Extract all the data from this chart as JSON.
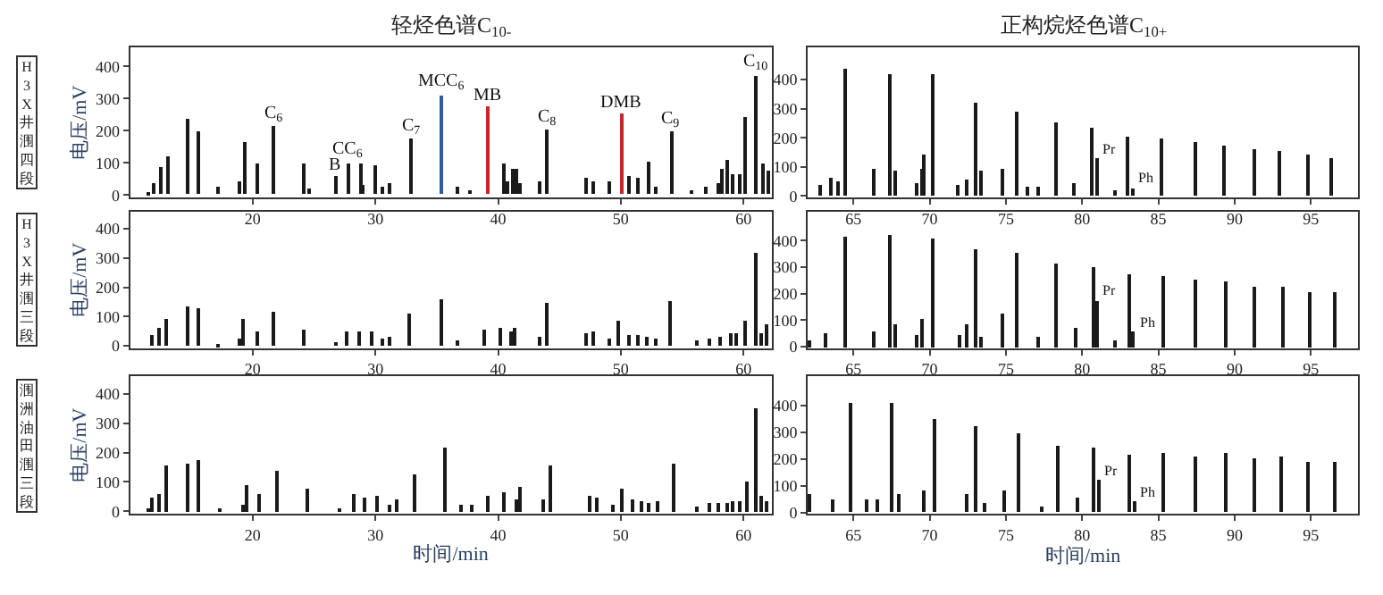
{
  "chart_data": [
    {
      "type": "bar",
      "title": "轻烃色谱C$_{10-}$",
      "ylabel": "电压/mV",
      "xlim": [
        10,
        62.3
      ],
      "xticks": [
        20,
        30,
        40,
        50,
        60
      ],
      "ylim": [
        -8,
        459
      ],
      "yticks": [
        0,
        100,
        200,
        300,
        400
      ],
      "annotations": [
        "H3X井涠四段",
        {
          "text": "C$_{6}$",
          "x": 21.7,
          "y": 212
        },
        {
          "text": "B",
          "x": 26.7,
          "y": 59
        },
        {
          "text": "CC$_{6}$",
          "x": 27.8,
          "y": 99
        },
        {
          "text": "C$_{7}$",
          "x": 32.9,
          "y": 174
        },
        {
          "text": "MCC$_{6}$",
          "x": 35.4,
          "y": 311
        },
        {
          "text": "MB",
          "x": 39.1,
          "y": 273
        },
        {
          "text": "C$_{8}$",
          "x": 44.0,
          "y": 202
        },
        {
          "text": "DMB",
          "x": 50.0,
          "y": 251
        },
        {
          "text": "C$_{9}$",
          "x": 54.1,
          "y": 198
        },
        {
          "text": "C$_{10}$",
          "x": 61.0,
          "y": 372
        }
      ],
      "series": [
        {
          "color": "#1a1a1a",
          "x": [
            11.4,
            11.9,
            12.5,
            13.0,
            14.7,
            15.6,
            17.2,
            18.9,
            19.3,
            20.3,
            21.7,
            24.2,
            24.6,
            26.7,
            27.8,
            28.8,
            29.0,
            29.9,
            30.6,
            31.2,
            32.9,
            36.7,
            37.7,
            40.4,
            40.7,
            41.2,
            41.5,
            41.8,
            43.4,
            44.0,
            47.2,
            47.8,
            49.0,
            50.7,
            51.4,
            52.2,
            52.8,
            54.1,
            55.7,
            56.9,
            57.9,
            58.2,
            58.7,
            59.1,
            59.6,
            60.1,
            61.0,
            61.5,
            62.0
          ],
          "values": [
            10,
            36,
            85,
            119,
            234,
            196,
            24,
            40,
            166,
            99,
            212,
            95,
            20,
            59,
            99,
            95,
            30,
            89,
            24,
            36,
            174,
            26,
            14,
            95,
            40,
            83,
            79,
            34,
            40,
            202,
            50,
            44,
            40,
            59,
            55,
            103,
            24,
            198,
            14,
            24,
            36,
            83,
            109,
            63,
            63,
            242,
            372,
            95,
            75
          ]
        },
        {
          "color": "#2e5aa8",
          "x": [
            35.4
          ],
          "values": [
            311
          ]
        },
        {
          "color": "#c62828",
          "x": [
            39.1,
            50.0
          ],
          "values": [
            273,
            251
          ]
        }
      ]
    },
    {
      "type": "bar",
      "title": "正构烷烃色谱C$_{10+}$",
      "xlim": [
        62,
        98.1
      ],
      "xticks": [
        65,
        70,
        75,
        80,
        85,
        90,
        95
      ],
      "ylim": [
        -5,
        510
      ],
      "yticks": [
        0,
        100,
        200,
        300,
        400
      ],
      "annotations": [
        {
          "text": "Pr",
          "x": 81.0,
          "y": 127
        },
        {
          "text": "Ph",
          "x": 83.3,
          "y": 26
        }
      ],
      "series": [
        {
          "color": "#1a1a1a",
          "x": [
            62.9,
            63.5,
            64.0,
            64.5,
            66.4,
            67.4,
            67.8,
            69.2,
            69.5,
            69.7,
            70.2,
            71.9,
            72.4,
            73.0,
            73.4,
            74.8,
            75.7,
            76.4,
            77.2,
            78.3,
            79.5,
            80.7,
            81.0,
            82.2,
            83.0,
            83.3,
            85.2,
            87.4,
            89.3,
            91.3,
            93.0,
            94.8,
            96.4
          ],
          "values": [
            40,
            62,
            48,
            435,
            92,
            418,
            84,
            44,
            92,
            141,
            418,
            40,
            55,
            319,
            84,
            95,
            286,
            31,
            29,
            253,
            44,
            233,
            127,
            18,
            204,
            26,
            198,
            185,
            174,
            160,
            154,
            141,
            127
          ]
        }
      ]
    },
    {
      "type": "bar",
      "ylabel": "电压/mV",
      "xlim": [
        10,
        62.3
      ],
      "xticks": [
        20,
        30,
        40,
        50,
        60
      ],
      "ylim": [
        -8,
        459
      ],
      "yticks": [
        0,
        100,
        200,
        300,
        400
      ],
      "annotations": [
        "H3X井涠三段"
      ],
      "series": [
        {
          "color": "#1a1a1a",
          "x": [
            11.8,
            12.4,
            12.9,
            14.6,
            15.5,
            17.2,
            18.9,
            19.2,
            20.3,
            21.7,
            24.2,
            26.7,
            27.7,
            28.7,
            29.7,
            30.6,
            31.2,
            32.8,
            35.3,
            36.7,
            38.9,
            40.2,
            41.0,
            41.3,
            43.3,
            43.9,
            47.2,
            47.7,
            49.0,
            49.8,
            50.6,
            51.3,
            52.1,
            52.8,
            54.0,
            56.2,
            57.2,
            58.1,
            58.9,
            59.4,
            60.1,
            61.0,
            61.4,
            61.8
          ],
          "values": [
            36,
            59,
            91,
            137,
            127,
            8,
            24,
            89,
            51,
            119,
            57,
            14,
            48,
            48,
            48,
            24,
            28,
            113,
            160,
            16,
            53,
            63,
            48,
            59,
            32,
            145,
            44,
            48,
            24,
            83,
            34,
            34,
            28,
            24,
            156,
            16,
            24,
            28,
            40,
            40,
            83,
            321,
            44,
            71
          ]
        }
      ]
    },
    {
      "type": "bar",
      "xlim": [
        62,
        98.1
      ],
      "xticks": [
        65,
        70,
        75,
        80,
        85,
        90,
        95
      ],
      "ylim": [
        -5,
        510
      ],
      "yticks": [
        0,
        100,
        200,
        300,
        400
      ],
      "annotations": [
        {
          "text": "Pr",
          "x": 81.0,
          "y": 174
        },
        {
          "text": "Ph",
          "x": 83.4,
          "y": 57
        }
      ],
      "series": [
        {
          "color": "#1a1a1a",
          "x": [
            62.1,
            63.2,
            64.5,
            66.4,
            67.4,
            67.8,
            69.2,
            69.5,
            70.2,
            72.0,
            72.4,
            73.0,
            73.4,
            74.8,
            75.7,
            77.2,
            78.3,
            79.6,
            80.8,
            81.0,
            82.2,
            83.1,
            83.4,
            85.3,
            87.4,
            89.4,
            91.3,
            93.2,
            94.9,
            96.6
          ],
          "values": [
            26,
            53,
            418,
            57,
            422,
            84,
            44,
            105,
            411,
            44,
            86,
            365,
            40,
            125,
            356,
            37,
            316,
            70,
            303,
            174,
            26,
            273,
            57,
            270,
            251,
            244,
            226,
            224,
            204,
            207
          ]
        }
      ]
    },
    {
      "type": "bar",
      "ylabel": "电压/mV",
      "xlabel": "时间/min",
      "xlim": [
        10,
        62.3
      ],
      "xticks": [
        20,
        30,
        40,
        50,
        60
      ],
      "ylim": [
        -8,
        459
      ],
      "yticks": [
        0,
        100,
        200,
        300,
        400
      ],
      "annotations": [
        "涠洲油田涠三段"
      ],
      "series": [
        {
          "color": "#1a1a1a",
          "x": [
            11.4,
            11.8,
            12.4,
            12.9,
            14.6,
            15.6,
            17.3,
            19.2,
            19.5,
            20.5,
            21.9,
            24.4,
            27.1,
            28.2,
            29.1,
            30.1,
            31.1,
            31.7,
            33.2,
            35.7,
            37.0,
            37.8,
            39.2,
            40.5,
            41.4,
            41.7,
            43.6,
            44.2,
            47.4,
            48.0,
            49.4,
            50.1,
            50.9,
            51.7,
            52.3,
            53.0,
            54.3,
            56.2,
            57.2,
            57.9,
            58.6,
            59.1,
            59.6,
            60.2,
            61.0,
            61.4,
            61.8
          ],
          "values": [
            6,
            44,
            56,
            157,
            163,
            175,
            8,
            22,
            90,
            60,
            137,
            78,
            12,
            56,
            44,
            50,
            24,
            38,
            125,
            215,
            20,
            20,
            50,
            66,
            40,
            80,
            38,
            153,
            52,
            48,
            22,
            74,
            38,
            32,
            28,
            32,
            161,
            16,
            28,
            26,
            26,
            32,
            32,
            101,
            350,
            52,
            32
          ]
        }
      ]
    },
    {
      "type": "bar",
      "xlabel": "时间/min",
      "xlim": [
        62,
        98.1
      ],
      "xticks": [
        65,
        70,
        75,
        80,
        85,
        90,
        95
      ],
      "ylim": [
        -5,
        510
      ],
      "yticks": [
        0,
        100,
        200,
        300,
        400
      ],
      "annotations": [
        {
          "text": "Pr",
          "x": 81.1,
          "y": 120
        },
        {
          "text": "Ph",
          "x": 83.5,
          "y": 42
        }
      ],
      "series": [
        {
          "color": "#1a1a1a",
          "x": [
            62.2,
            63.7,
            64.8,
            65.9,
            66.6,
            67.5,
            68.0,
            69.7,
            70.4,
            72.5,
            73.1,
            73.6,
            74.9,
            75.8,
            77.4,
            78.4,
            79.7,
            80.8,
            81.1,
            83.1,
            83.5,
            85.3,
            87.4,
            89.4,
            91.3,
            93.1,
            94.8,
            96.6
          ],
          "values": [
            68,
            46,
            413,
            46,
            50,
            407,
            66,
            85,
            352,
            66,
            323,
            35,
            85,
            295,
            20,
            247,
            52,
            243,
            120,
            216,
            42,
            225,
            212,
            225,
            199,
            210,
            186,
            192
          ]
        }
      ]
    }
  ]
}
